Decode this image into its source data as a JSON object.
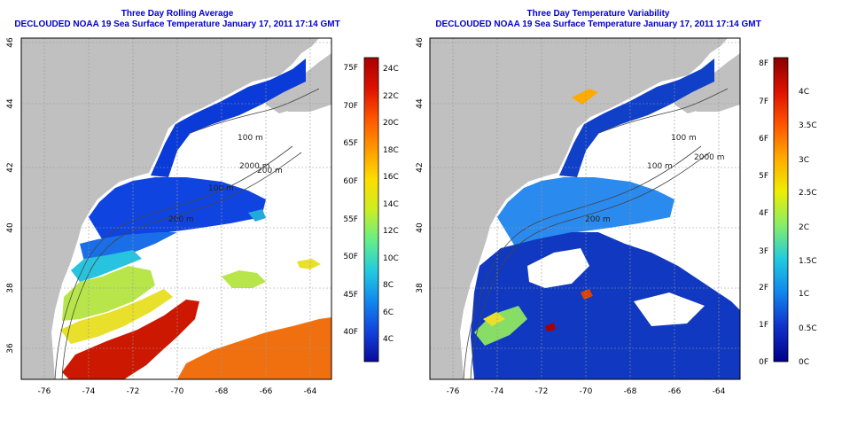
{
  "maps": [
    {
      "title": "Three Day Rolling Average",
      "subtitle": "DECLOUDED NOAA 19 Sea Surface Temperature January 17, 2011 17:14 GMT",
      "lon_ticks": [
        "-76",
        "-74",
        "-72",
        "-70",
        "-68",
        "-66",
        "-64"
      ],
      "lat_ticks": [
        "36",
        "38",
        "40",
        "42",
        "44",
        "46"
      ],
      "contours": [
        "100 m",
        "100 m",
        "2000 m",
        "200 m",
        "200 m"
      ],
      "colorbar": {
        "f_labels": [
          "75F",
          "70F",
          "65F",
          "60F",
          "55F",
          "50F",
          "45F",
          "40F"
        ],
        "c_labels": [
          "24C",
          "22C",
          "20C",
          "18C",
          "16C",
          "14C",
          "12C",
          "10C",
          "8C",
          "6C",
          "4C"
        ],
        "colors": [
          "#aa0000",
          "#dd1100",
          "#ff5500",
          "#ff9900",
          "#ffdd00",
          "#ccee22",
          "#66ee88",
          "#22ccdd",
          "#1188ee",
          "#1144dd",
          "#0a0a99"
        ]
      }
    },
    {
      "title": "Three Day Temperature Variability",
      "subtitle": "DECLOUDED NOAA 19 Sea Surface Temperature January 17, 2011 17:14 GMT",
      "lon_ticks": [
        "-76",
        "-74",
        "-72",
        "-70",
        "-68",
        "-66",
        "-64"
      ],
      "lat_ticks": [
        "36",
        "38",
        "40",
        "42",
        "44",
        "46"
      ],
      "contours": [
        "100 m",
        "100 m",
        "2000 m",
        "200 m"
      ],
      "colorbar": {
        "f_labels": [
          "8F",
          "7F",
          "6F",
          "5F",
          "4F",
          "3F",
          "2F",
          "1F",
          "0F"
        ],
        "c_labels": [
          "4C",
          "3.5C",
          "3C",
          "2.5C",
          "2C",
          "1.5C",
          "1C",
          "0.5C",
          "0C"
        ],
        "colors": [
          "#880000",
          "#dd1100",
          "#ff5500",
          "#ffaa00",
          "#eeee00",
          "#88ee66",
          "#22ccdd",
          "#1188ee",
          "#1133cc",
          "#000088"
        ]
      }
    }
  ]
}
